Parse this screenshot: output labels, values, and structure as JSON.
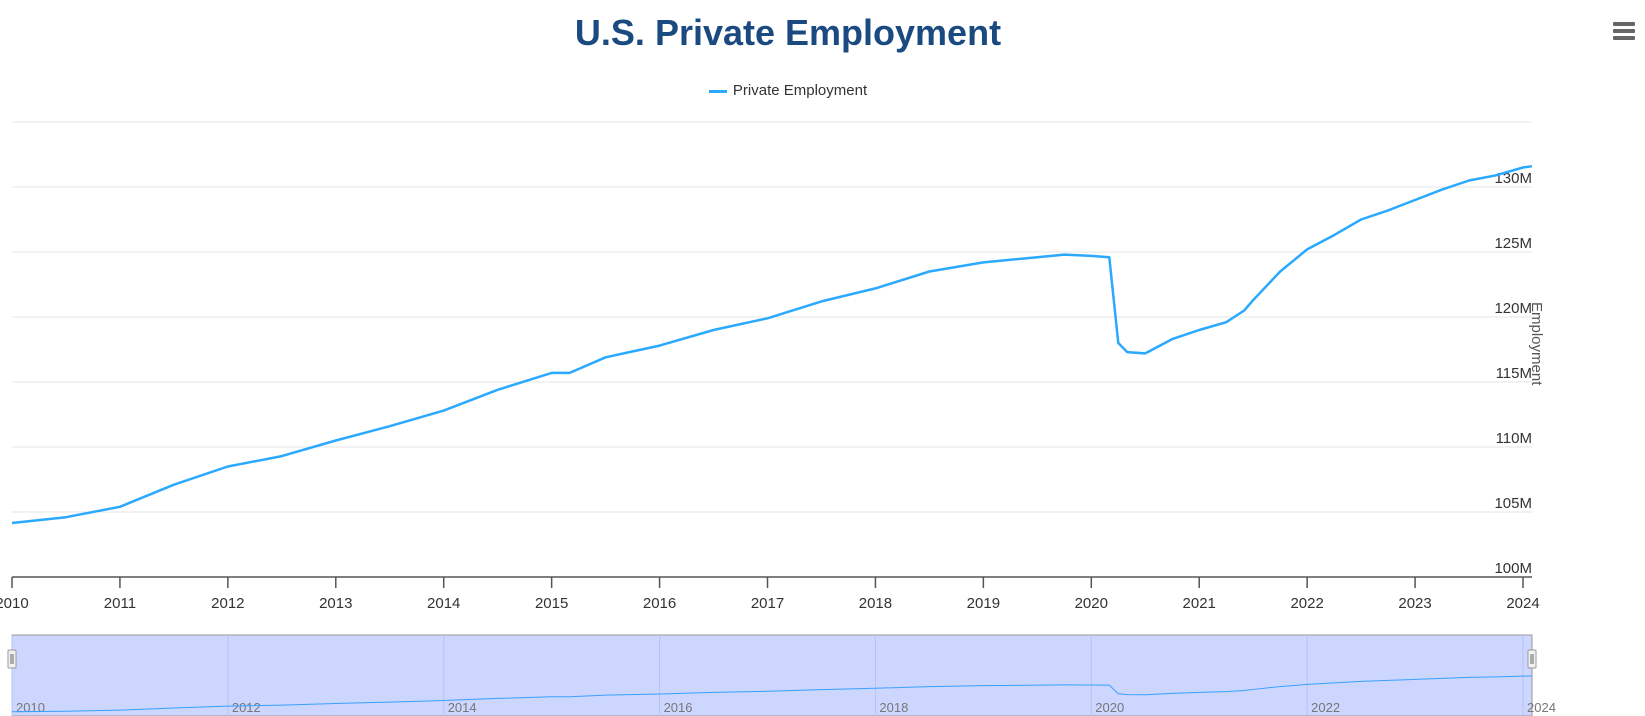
{
  "chart_data": {
    "type": "line",
    "title": "U.S. Private Employment",
    "ylabel": "Employment",
    "xlabel": "",
    "ylim": [
      100,
      135
    ],
    "yticks": [
      "100M",
      "105M",
      "110M",
      "115M",
      "120M",
      "125M",
      "130M"
    ],
    "ytick_values": [
      100,
      105,
      110,
      115,
      120,
      125,
      130
    ],
    "xticks": [
      "2010",
      "2011",
      "2012",
      "2013",
      "2014",
      "2015",
      "2016",
      "2017",
      "2018",
      "2019",
      "2020",
      "2021",
      "2022",
      "2023",
      "2024"
    ],
    "xlim": [
      "2010-01",
      "2024-02"
    ],
    "grid": true,
    "legend_placement": "top-center",
    "navigator_labels": [
      "2010",
      "2012",
      "2014",
      "2016",
      "2018",
      "2020",
      "2022",
      "2024"
    ],
    "series": [
      {
        "name": "Private Employment",
        "color": "#2aa9ff",
        "points": [
          [
            "2010-01",
            104.15
          ],
          [
            "2010-07",
            104.6
          ],
          [
            "2011-01",
            105.4
          ],
          [
            "2011-07",
            107.1
          ],
          [
            "2012-01",
            108.5
          ],
          [
            "2012-07",
            109.3
          ],
          [
            "2013-01",
            110.5
          ],
          [
            "2013-07",
            111.6
          ],
          [
            "2014-01",
            112.8
          ],
          [
            "2014-07",
            114.4
          ],
          [
            "2015-01",
            115.7
          ],
          [
            "2015-03",
            115.7
          ],
          [
            "2015-07",
            116.9
          ],
          [
            "2016-01",
            117.8
          ],
          [
            "2016-07",
            119.0
          ],
          [
            "2017-01",
            119.9
          ],
          [
            "2017-07",
            121.2
          ],
          [
            "2018-01",
            122.2
          ],
          [
            "2018-07",
            123.5
          ],
          [
            "2019-01",
            124.2
          ],
          [
            "2019-07",
            124.6
          ],
          [
            "2019-10",
            124.8
          ],
          [
            "2020-01",
            124.7
          ],
          [
            "2020-03",
            124.6
          ],
          [
            "2020-04",
            118.0
          ],
          [
            "2020-05",
            117.3
          ],
          [
            "2020-07",
            117.2
          ],
          [
            "2020-10",
            118.3
          ],
          [
            "2021-01",
            119.0
          ],
          [
            "2021-04",
            119.6
          ],
          [
            "2021-06",
            120.5
          ],
          [
            "2021-07",
            121.3
          ],
          [
            "2021-10",
            123.5
          ],
          [
            "2022-01",
            125.2
          ],
          [
            "2022-04",
            126.3
          ],
          [
            "2022-07",
            127.5
          ],
          [
            "2022-10",
            128.2
          ],
          [
            "2023-01",
            129.0
          ],
          [
            "2023-04",
            129.8
          ],
          [
            "2023-07",
            130.5
          ],
          [
            "2023-10",
            130.9
          ],
          [
            "2024-01",
            131.5
          ],
          [
            "2024-02",
            131.6
          ]
        ]
      }
    ]
  }
}
